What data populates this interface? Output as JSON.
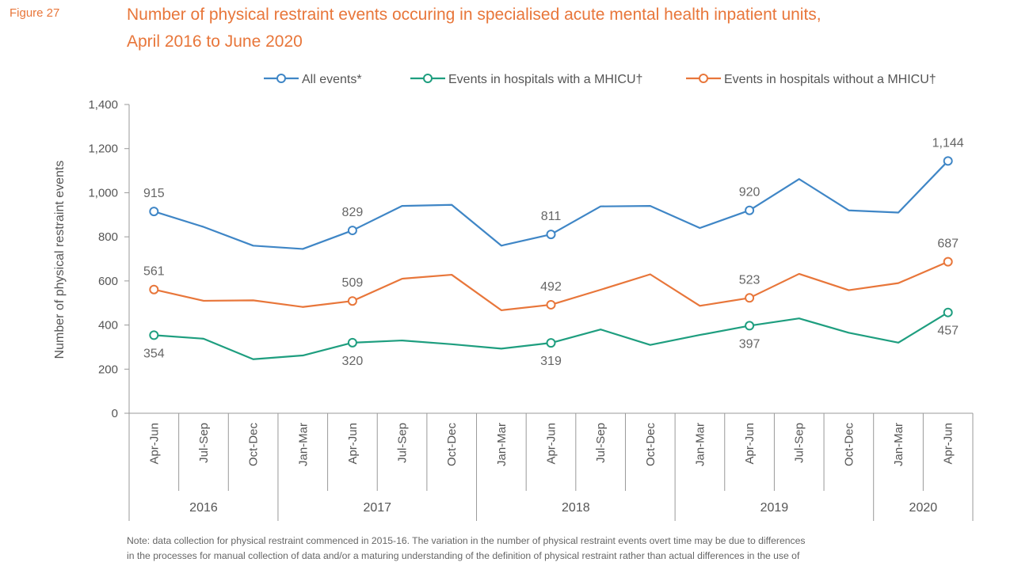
{
  "figure_label": "Figure 27",
  "title_line1": "Number of physical restraint events occuring in specialised acute mental health inpatient units,",
  "title_line2": "April 2016 to June 2020",
  "note_line1": "Note: data collection for physical restraint commenced in 2015-16. The variation in the number of physical restraint events overt time may be due to differences",
  "note_line2": "in the processes for manual collection of data and/or a maturing understanding of the definition of physical restraint rather than actual differences in the use of",
  "chart_data": {
    "type": "line",
    "ylabel": "Number of physical restraint events",
    "ylim": [
      0,
      1400
    ],
    "yticks": [
      0,
      200,
      400,
      600,
      800,
      1000,
      1200,
      1400
    ],
    "ytick_labels": [
      "0",
      "200",
      "400",
      "600",
      "800",
      "1,000",
      "1,200",
      "1,400"
    ],
    "grid": false,
    "legend_position": "top",
    "categories": [
      "Apr-Jun",
      "Jul-Sep",
      "Oct-Dec",
      "Jan-Mar",
      "Apr-Jun",
      "Jul-Sep",
      "Oct-Dec",
      "Jan-Mar",
      "Apr-Jun",
      "Jul-Sep",
      "Oct-Dec",
      "Jan-Mar",
      "Apr-Jun",
      "Jul-Sep",
      "Oct-Dec",
      "Jan-Mar",
      "Apr-Jun"
    ],
    "year_groups": [
      {
        "label": "2016",
        "start": 0,
        "end": 2
      },
      {
        "label": "2017",
        "start": 3,
        "end": 6
      },
      {
        "label": "2018",
        "start": 7,
        "end": 10
      },
      {
        "label": "2019",
        "start": 11,
        "end": 14
      },
      {
        "label": "2020",
        "start": 15,
        "end": 16
      }
    ],
    "marker_indices": [
      0,
      4,
      8,
      12,
      16
    ],
    "series": [
      {
        "name": "All events*",
        "color": "#3f86c6",
        "values": [
          915,
          845,
          760,
          745,
          829,
          940,
          945,
          760,
          811,
          938,
          940,
          840,
          920,
          1062,
          920,
          910,
          1144
        ],
        "labels": [
          "915",
          "829",
          "811",
          "920",
          "1,144"
        ],
        "label_position": "above"
      },
      {
        "name": "Events in hospitals with a MHICU†",
        "color": "#1e9e7f",
        "values": [
          354,
          338,
          245,
          262,
          320,
          330,
          313,
          293,
          319,
          380,
          310,
          355,
          397,
          430,
          365,
          320,
          457
        ],
        "labels": [
          "354",
          "320",
          "319",
          "397",
          "457"
        ],
        "label_position": "below"
      },
      {
        "name": "Events in hospitals without a MHICU†",
        "color": "#e8763a",
        "values": [
          561,
          510,
          512,
          482,
          509,
          610,
          628,
          467,
          492,
          560,
          630,
          487,
          523,
          632,
          558,
          590,
          687
        ],
        "labels": [
          "561",
          "509",
          "492",
          "523",
          "687"
        ],
        "label_position": "above"
      }
    ]
  }
}
